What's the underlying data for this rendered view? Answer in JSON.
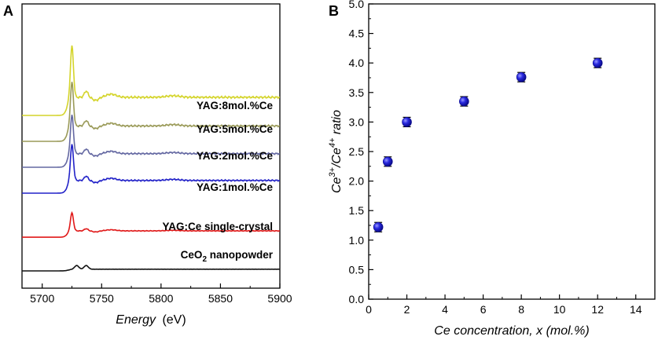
{
  "chart_data": [
    {
      "panel": "A",
      "type": "line",
      "title": "",
      "xlabel_italic": "Energy",
      "xlabel_unit": "(eV)",
      "ylabel": "",
      "xlim": [
        5683,
        5900
      ],
      "xticks": [
        5700,
        5750,
        5800,
        5850,
        5900
      ],
      "series": [
        {
          "name": "YAG:8mol.%Ce",
          "color": "#d4d42a",
          "offset": 0.6,
          "scale": 1.0
        },
        {
          "name": "YAG:5mol.%Ce",
          "color": "#9a9a58",
          "offset": 0.5,
          "scale": 0.85
        },
        {
          "name": "YAG:2mol.%Ce",
          "color": "#6468a2",
          "offset": 0.4,
          "scale": 0.75
        },
        {
          "name": "YAG:1mol.%Ce",
          "color": "#2222c8",
          "offset": 0.3,
          "scale": 0.7
        },
        {
          "name": "YAG:Ce single-crystal",
          "color": "#e01818",
          "offset": 0.13,
          "scale": 0.35
        },
        {
          "name": "CeO",
          "name_sub": "2",
          "name_suffix": " nanopowder",
          "color": "#111111",
          "offset": 0.0,
          "scale": 0.13
        }
      ]
    },
    {
      "panel": "B",
      "type": "scatter",
      "title": "",
      "xlabel": "Ce concentration, x (mol.%)",
      "ylabel": "Ce3+/Ce4+ ratio",
      "ylabel_parts": {
        "base1": "Ce",
        "sup1": "3+",
        "mid": "/Ce",
        "sup2": "4+",
        "rest": " ratio"
      },
      "xlim": [
        0,
        15
      ],
      "ylim": [
        0,
        5
      ],
      "xticks": [
        0,
        2,
        4,
        6,
        8,
        10,
        12,
        14
      ],
      "yticks": [
        "0.0",
        "0.5",
        "1.0",
        "1.5",
        "2.0",
        "2.5",
        "3.0",
        "3.5",
        "4.0",
        "4.5",
        "5.0"
      ],
      "x": [
        0.5,
        1,
        2,
        5,
        8,
        12
      ],
      "y": [
        1.22,
        2.33,
        3.0,
        3.35,
        3.76,
        4.0
      ],
      "yerr": [
        0.08,
        0.08,
        0.08,
        0.08,
        0.08,
        0.08
      ],
      "marker_color": "#1515d8"
    }
  ],
  "panel_labels": {
    "a": "A",
    "b": "B"
  }
}
